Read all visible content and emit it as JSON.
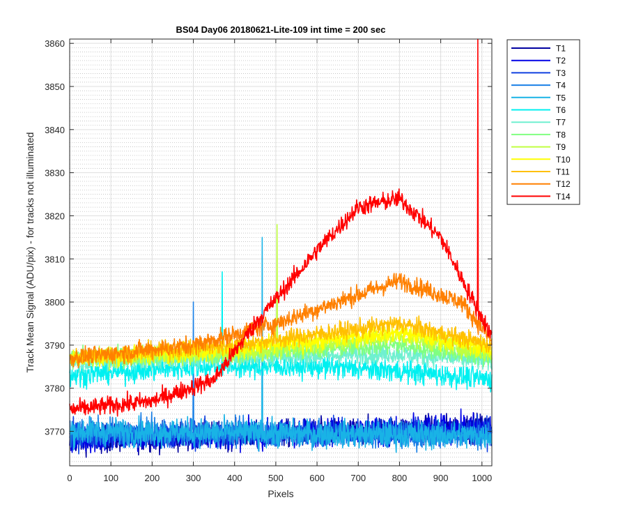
{
  "chart_data": {
    "type": "line",
    "title": "BS04 Day06 20180621-Lite-109 int time = 200 sec",
    "xlabel": "Pixels",
    "ylabel": "Track Mean Signal (ADU/pix) - for tracks not illuminated",
    "xlim": [
      0,
      1024
    ],
    "ylim": [
      3762,
      3861
    ],
    "xticks": [
      0,
      100,
      200,
      300,
      400,
      500,
      600,
      700,
      800,
      900,
      1000
    ],
    "yticks": [
      3770,
      3780,
      3790,
      3800,
      3810,
      3820,
      3830,
      3840,
      3850,
      3860
    ],
    "grid": true,
    "minor_grid": true,
    "legend_position": "outside-right-top",
    "series": [
      {
        "name": "T1",
        "color": "#0000a0",
        "baseline": [
          [
            0,
            3768
          ],
          [
            1024,
            3771
          ]
        ],
        "noise": 3.0
      },
      {
        "name": "T2",
        "color": "#0000e6",
        "baseline": [
          [
            0,
            3768
          ],
          [
            1024,
            3771
          ]
        ],
        "noise": 3.0
      },
      {
        "name": "T3",
        "color": "#1040e0",
        "baseline": [
          [
            0,
            3769
          ],
          [
            1024,
            3770
          ]
        ],
        "noise": 3.0
      },
      {
        "name": "T4",
        "color": "#1a80e6",
        "baseline": [
          [
            0,
            3770
          ],
          [
            1024,
            3769
          ]
        ],
        "noise": 3.0,
        "spikes": [
          [
            300,
            3800
          ]
        ]
      },
      {
        "name": "T5",
        "color": "#19b3e6",
        "baseline": [
          [
            0,
            3770
          ],
          [
            1024,
            3769
          ]
        ],
        "noise": 3.0,
        "spikes": [
          [
            467,
            3815
          ]
        ]
      },
      {
        "name": "T6",
        "color": "#00f0f0",
        "baseline": [
          [
            0,
            3783
          ],
          [
            300,
            3785
          ],
          [
            600,
            3785
          ],
          [
            800,
            3784
          ],
          [
            1024,
            3782
          ]
        ],
        "noise": 2.5,
        "spikes": [
          [
            370,
            3807
          ]
        ]
      },
      {
        "name": "T7",
        "color": "#6ff0d0",
        "baseline": [
          [
            0,
            3786
          ],
          [
            400,
            3787
          ],
          [
            800,
            3788
          ],
          [
            1024,
            3786
          ]
        ],
        "noise": 2.0
      },
      {
        "name": "T8",
        "color": "#80ff80",
        "baseline": [
          [
            0,
            3787
          ],
          [
            400,
            3788
          ],
          [
            800,
            3790
          ],
          [
            1024,
            3787
          ]
        ],
        "noise": 2.0
      },
      {
        "name": "T9",
        "color": "#c0ff40",
        "baseline": [
          [
            0,
            3787
          ],
          [
            400,
            3788
          ],
          [
            800,
            3792
          ],
          [
            1024,
            3788
          ]
        ],
        "noise": 2.0,
        "spikes": [
          [
            503,
            3818
          ]
        ]
      },
      {
        "name": "T10",
        "color": "#ffff00",
        "baseline": [
          [
            0,
            3787
          ],
          [
            400,
            3789
          ],
          [
            800,
            3793
          ],
          [
            1024,
            3789
          ]
        ],
        "noise": 2.0
      },
      {
        "name": "T11",
        "color": "#ffc000",
        "baseline": [
          [
            0,
            3787
          ],
          [
            400,
            3790
          ],
          [
            800,
            3795
          ],
          [
            1024,
            3790
          ]
        ],
        "noise": 2.0
      },
      {
        "name": "T12",
        "color": "#ff8000",
        "baseline": [
          [
            0,
            3787
          ],
          [
            300,
            3790
          ],
          [
            500,
            3795
          ],
          [
            800,
            3805
          ],
          [
            950,
            3800
          ],
          [
            1024,
            3791
          ]
        ],
        "noise": 2.0
      },
      {
        "name": "T14",
        "color": "#ff0000",
        "baseline": [
          [
            0,
            3775
          ],
          [
            200,
            3777
          ],
          [
            350,
            3782
          ],
          [
            450,
            3795
          ],
          [
            600,
            3812
          ],
          [
            700,
            3822
          ],
          [
            800,
            3824
          ],
          [
            900,
            3815
          ],
          [
            980,
            3800
          ],
          [
            1024,
            3792
          ]
        ],
        "noise": 2.0,
        "spikes": [
          [
            990,
            3861
          ]
        ]
      }
    ]
  }
}
